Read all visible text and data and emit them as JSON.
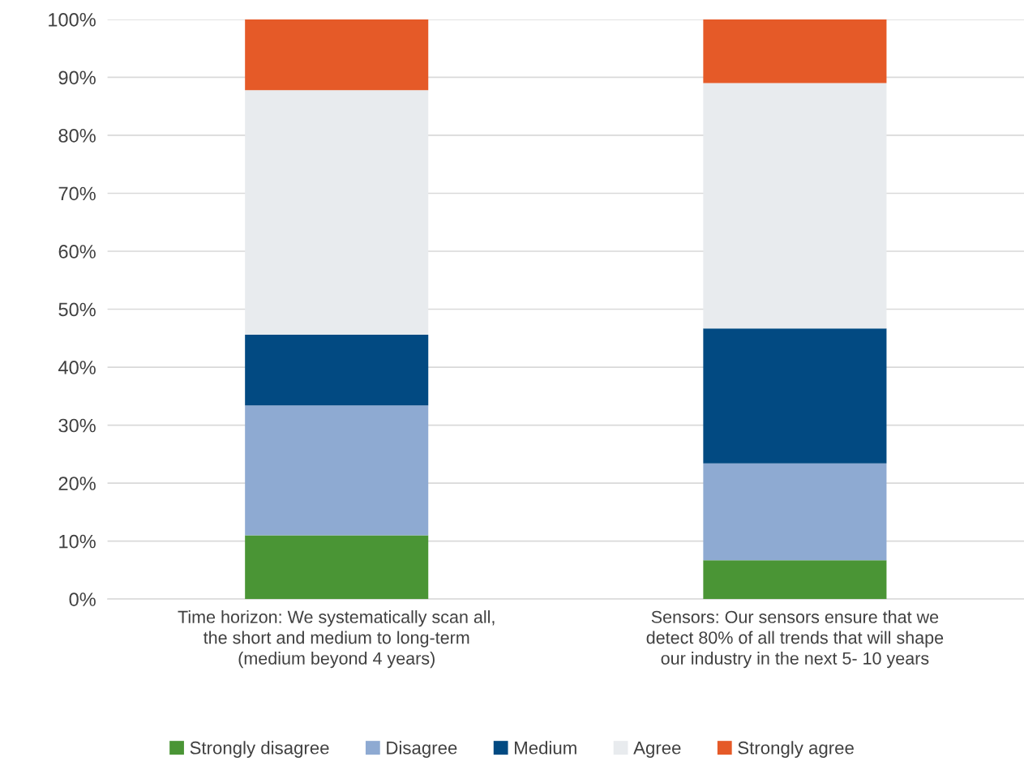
{
  "chart_data": {
    "type": "bar",
    "stacked": true,
    "categories": [
      "Time horizon: We systematically scan all,\nthe short and medium to long-term\n(medium beyond 4 years)",
      "Sensors: Our sensors ensure that we\ndetect 80% of all trends that will shape\nour industry in the next 5- 10 years"
    ],
    "series": [
      {
        "name": "Strongly disagree",
        "color": "#4a9535",
        "values": [
          11.0,
          6.7
        ]
      },
      {
        "name": "Disagree",
        "color": "#8eaad2",
        "values": [
          22.4,
          16.7
        ]
      },
      {
        "name": "Medium",
        "color": "#024a82",
        "values": [
          12.2,
          23.3
        ]
      },
      {
        "name": "Agree",
        "color": "#e8ebee",
        "values": [
          42.2,
          42.3
        ]
      },
      {
        "name": "Strongly agree",
        "color": "#e55a28",
        "values": [
          12.2,
          11.0
        ]
      }
    ],
    "ylim": [
      0,
      100
    ],
    "yticks": [
      {
        "value": 0,
        "label": "0%"
      },
      {
        "value": 10,
        "label": "10%"
      },
      {
        "value": 20,
        "label": "20%"
      },
      {
        "value": 30,
        "label": "30%"
      },
      {
        "value": 40,
        "label": "40%"
      },
      {
        "value": 50,
        "label": "50%"
      },
      {
        "value": 60,
        "label": "60%"
      },
      {
        "value": 70,
        "label": "70%"
      },
      {
        "value": 80,
        "label": "80%"
      },
      {
        "value": 90,
        "label": "90%"
      },
      {
        "value": 100,
        "label": "100%"
      }
    ],
    "grid": "y",
    "legend": "bottom"
  }
}
